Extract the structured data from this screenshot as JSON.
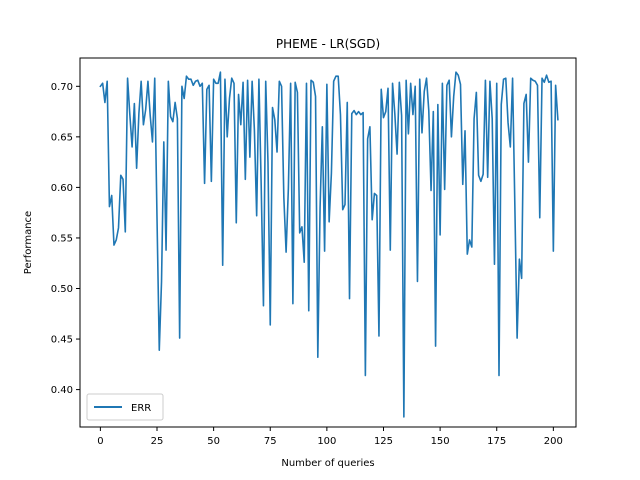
{
  "chart_data": {
    "type": "line",
    "title": "PHEME - LR(SGD)",
    "xlabel": "Number of queries",
    "ylabel": "Performance",
    "xlim": [
      -9,
      210
    ],
    "ylim": [
      0.363,
      0.728
    ],
    "xticks": [
      0,
      25,
      50,
      75,
      100,
      125,
      150,
      175,
      200
    ],
    "yticks": [
      0.4,
      0.45,
      0.5,
      0.55,
      0.6,
      0.65,
      0.7
    ],
    "ytick_labels": [
      "0.40",
      "0.45",
      "0.50",
      "0.55",
      "0.60",
      "0.65",
      "0.70"
    ],
    "grid": false,
    "legend_position": "lower-left",
    "series": [
      {
        "name": "ERR",
        "color": "#1f77b4",
        "y": [
          0.7,
          0.703,
          0.684,
          0.705,
          0.581,
          0.592,
          0.543,
          0.548,
          0.56,
          0.612,
          0.608,
          0.556,
          0.708,
          0.672,
          0.64,
          0.683,
          0.619,
          0.673,
          0.705,
          0.662,
          0.677,
          0.705,
          0.671,
          0.645,
          0.708,
          0.57,
          0.439,
          0.507,
          0.645,
          0.538,
          0.705,
          0.67,
          0.665,
          0.684,
          0.668,
          0.451,
          0.7,
          0.688,
          0.71,
          0.707,
          0.707,
          0.701,
          0.705,
          0.706,
          0.7,
          0.703,
          0.604,
          0.697,
          0.701,
          0.606,
          0.707,
          0.703,
          0.703,
          0.714,
          0.523,
          0.707,
          0.65,
          0.688,
          0.708,
          0.703,
          0.565,
          0.692,
          0.662,
          0.704,
          0.608,
          0.706,
          0.63,
          0.705,
          0.657,
          0.572,
          0.707,
          0.602,
          0.483,
          0.705,
          0.625,
          0.464,
          0.679,
          0.667,
          0.635,
          0.705,
          0.7,
          0.59,
          0.536,
          0.599,
          0.703,
          0.485,
          0.704,
          0.694,
          0.555,
          0.561,
          0.526,
          0.703,
          0.478,
          0.706,
          0.704,
          0.69,
          0.432,
          0.58,
          0.66,
          0.537,
          0.702,
          0.566,
          0.614,
          0.705,
          0.71,
          0.71,
          0.672,
          0.578,
          0.583,
          0.684,
          0.49,
          0.673,
          0.676,
          0.672,
          0.675,
          0.672,
          0.674,
          0.414,
          0.648,
          0.66,
          0.568,
          0.594,
          0.592,
          0.453,
          0.697,
          0.669,
          0.675,
          0.698,
          0.538,
          0.703,
          0.673,
          0.633,
          0.704,
          0.671,
          0.373,
          0.706,
          0.653,
          0.703,
          0.672,
          0.7,
          0.507,
          0.707,
          0.654,
          0.695,
          0.708,
          0.676,
          0.597,
          0.675,
          0.443,
          0.682,
          0.553,
          0.703,
          0.598,
          0.701,
          0.706,
          0.65,
          0.69,
          0.714,
          0.711,
          0.702,
          0.603,
          0.656,
          0.534,
          0.548,
          0.541,
          0.668,
          0.694,
          0.612,
          0.606,
          0.613,
          0.706,
          0.61,
          0.705,
          0.668,
          0.524,
          0.703,
          0.414,
          0.682,
          0.707,
          0.708,
          0.664,
          0.64,
          0.708,
          0.582,
          0.451,
          0.529,
          0.51,
          0.683,
          0.692,
          0.625,
          0.708,
          0.706,
          0.705,
          0.701,
          0.57,
          0.708,
          0.704,
          0.711,
          0.704,
          0.705,
          0.537,
          0.701,
          0.667
        ]
      }
    ]
  }
}
